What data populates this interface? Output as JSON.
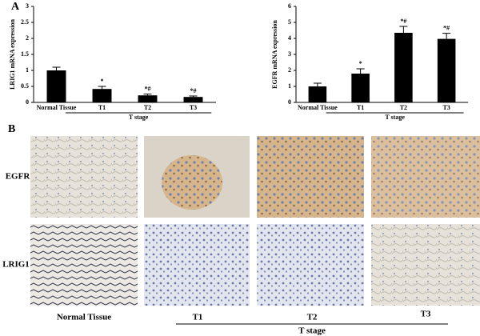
{
  "panel_a_label": "A",
  "chart_data": [
    {
      "type": "bar",
      "y_label": "LRIG1 mRNA expression",
      "categories": [
        "Normal Tissue",
        "T1",
        "T2",
        "T3"
      ],
      "group_label": "T stage",
      "values": [
        1.0,
        0.42,
        0.22,
        0.17
      ],
      "errors": [
        0.1,
        0.08,
        0.04,
        0.03
      ],
      "annotations": [
        null,
        "*",
        "*#",
        "*#"
      ],
      "color": "#000000",
      "ylim": [
        0,
        3
      ],
      "yticks": [
        0,
        0.5,
        1,
        1.5,
        2,
        2.5,
        3
      ]
    },
    {
      "type": "bar",
      "y_label": "EGFR mRNA expression",
      "categories": [
        "Normal Tissue",
        "T1",
        "T2",
        "T3"
      ],
      "group_label": "T stage",
      "values": [
        1.0,
        1.8,
        4.35,
        3.97
      ],
      "errors": [
        0.2,
        0.3,
        0.4,
        0.35
      ],
      "annotations": [
        null,
        "*",
        "*#",
        "*#"
      ],
      "color": "#000000",
      "ylim": [
        0,
        6
      ],
      "yticks": [
        0,
        1,
        2,
        3,
        4,
        5,
        6
      ]
    }
  ],
  "panel_b": {
    "label": "B",
    "rows": [
      "EGFR",
      "LRIG1"
    ],
    "columns": [
      "Normal Tissue",
      "T1",
      "T2",
      "T3"
    ],
    "group_label": "T stage"
  }
}
